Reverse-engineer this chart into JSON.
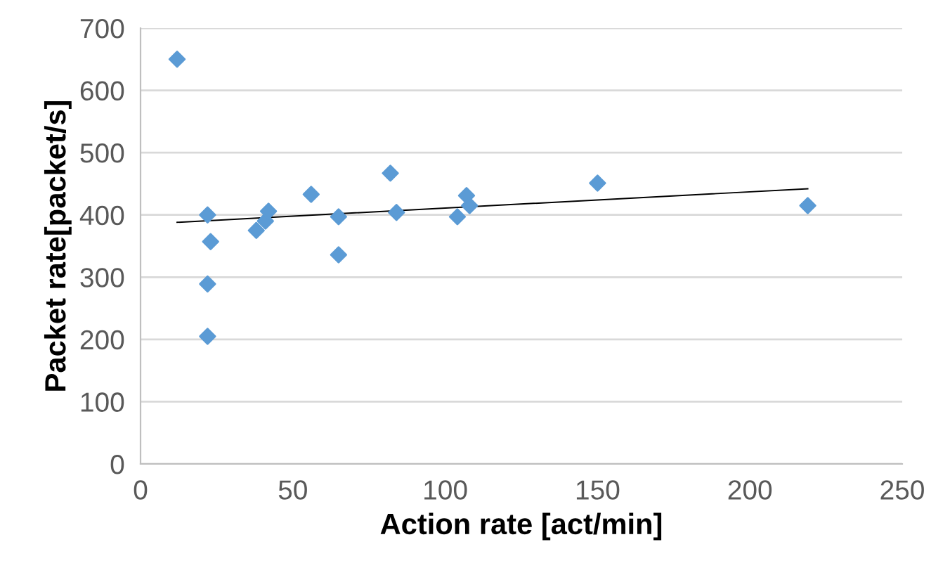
{
  "chart_data": {
    "type": "scatter",
    "xlabel": "Action rate [act/min]",
    "ylabel": "Packet rate[packet/s]",
    "xlim": [
      0,
      250
    ],
    "ylim": [
      0,
      700
    ],
    "xticks": [
      0,
      50,
      100,
      150,
      200,
      250
    ],
    "yticks": [
      0,
      100,
      200,
      300,
      400,
      500,
      600,
      700
    ],
    "grid": "y",
    "series": [
      {
        "marker": "diamond",
        "color": "#5b9bd5",
        "x": [
          12,
          22,
          23,
          22,
          22,
          38,
          41,
          42,
          56,
          65,
          65,
          82,
          84,
          104,
          107,
          108,
          150,
          219
        ],
        "values": [
          650,
          400,
          357,
          289,
          205,
          375,
          390,
          406,
          433,
          397,
          336,
          467,
          404,
          397,
          431,
          415,
          451,
          415
        ]
      },
      {
        "type": "line",
        "color": "#000000",
        "line_style": "solid",
        "x": [
          12,
          219
        ],
        "values": [
          388,
          442
        ]
      }
    ]
  }
}
